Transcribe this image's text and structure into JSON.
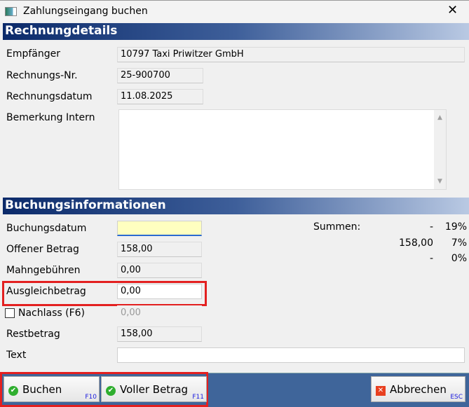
{
  "window": {
    "title": "Zahlungseingang buchen"
  },
  "rechnung": {
    "header": "Rechnungdetails",
    "empfaenger_label": "Empfänger",
    "empfaenger": "10797 Taxi Priwitzer GmbH",
    "nr_label": "Rechnungs-Nr.",
    "nr": "25-900700",
    "datum_label": "Rechnungsdatum",
    "datum": "11.08.2025",
    "bemerkung_label": "Bemerkung Intern",
    "bemerkung": ""
  },
  "buchung": {
    "header": "Buchungsinformationen",
    "buchungsdatum_label": "Buchungsdatum",
    "buchungsdatum": "",
    "offen_label": "Offener Betrag",
    "offen": "158,00",
    "mahn_label": "Mahngebühren",
    "mahn": "0,00",
    "ausgleich_label": "Ausgleichbetrag",
    "ausgleich": "0,00",
    "nachlass_label": "Nachlass (F6)",
    "nachlass": "0,00",
    "nachlass_checked": false,
    "rest_label": "Restbetrag",
    "rest": "158,00",
    "text_label": "Text",
    "text": ""
  },
  "summen": {
    "label": "Summen:",
    "rows": [
      {
        "amount": "-",
        "rate": "19%"
      },
      {
        "amount": "158,00",
        "rate": "7%"
      },
      {
        "amount": "-",
        "rate": "0%"
      }
    ]
  },
  "buttons": {
    "buchen": "Buchen",
    "buchen_key": "F10",
    "voll": "Voller Betrag",
    "voll_key": "F11",
    "abbrechen": "Abbrechen",
    "abbrechen_key": "ESC"
  }
}
